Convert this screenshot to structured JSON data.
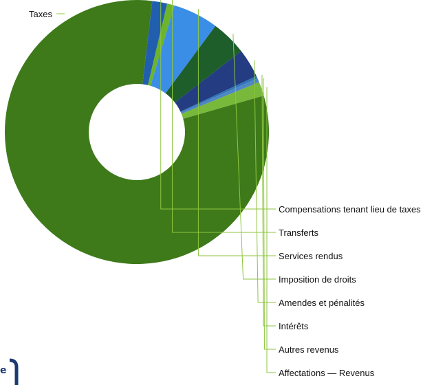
{
  "chart_data": {
    "type": "pie",
    "subtype": "donut",
    "slices": [
      {
        "label": "Taxes",
        "value": 80.5,
        "color": "#3e7a1a"
      },
      {
        "label": "Compensations tenant lieu de taxes",
        "value": 1.8,
        "color": "#215fae"
      },
      {
        "label": "Transferts",
        "value": 0.9,
        "color": "#6cb42c"
      },
      {
        "label": "Services rendus",
        "value": 5.5,
        "color": "#3a8ee6"
      },
      {
        "label": "Imposition de droits",
        "value": 4.3,
        "color": "#1d5e2a"
      },
      {
        "label": "Amendes et pénalités",
        "value": 3.5,
        "color": "#243c82"
      },
      {
        "label": "Intérêts",
        "value": 0.3,
        "color": "#2e75b6"
      },
      {
        "label": "Autres revenus",
        "value": 0.5,
        "color": "#4f86c6"
      },
      {
        "label": "Affectations — Revenus",
        "value": 1.7,
        "color": "#78b83a"
      }
    ],
    "leader_line_color": "#8dc63f"
  },
  "logo": {
    "text": "e"
  }
}
